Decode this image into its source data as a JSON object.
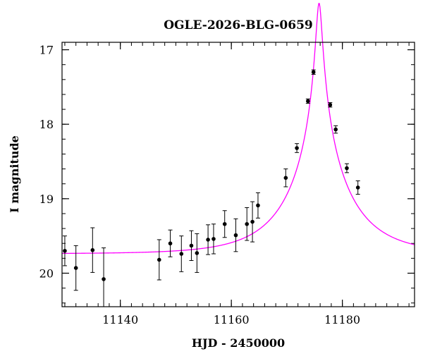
{
  "chart_data": {
    "type": "scatter",
    "title": "OGLE-2026-BLG-0659",
    "xlabel": "HJD - 2450000",
    "ylabel": "I magnitude",
    "xlim": [
      11129.5,
      11193
    ],
    "ylim": [
      20.45,
      16.9
    ],
    "y_inverted": true,
    "grid": false,
    "xticks": [
      11140,
      11160,
      11180
    ],
    "xtick_labels": [
      "11140",
      "11160",
      "11180"
    ],
    "yticks": [
      17,
      18,
      19,
      20
    ],
    "ytick_labels": [
      "17",
      "18",
      "19",
      "20"
    ],
    "x_minor_step": 2,
    "y_minor_step": 0.2,
    "series": [
      {
        "points": [
          {
            "x": 11130.0,
            "y": 19.7,
            "err": 0.2
          },
          {
            "x": 11132.0,
            "y": 19.93,
            "err": 0.3
          },
          {
            "x": 11135.0,
            "y": 19.69,
            "err": 0.3
          },
          {
            "x": 11137.0,
            "y": 20.08,
            "err": 0.42
          },
          {
            "x": 11147.0,
            "y": 19.82,
            "err": 0.27
          },
          {
            "x": 11149.0,
            "y": 19.6,
            "err": 0.18
          },
          {
            "x": 11151.0,
            "y": 19.74,
            "err": 0.24
          },
          {
            "x": 11152.8,
            "y": 19.63,
            "err": 0.2
          },
          {
            "x": 11153.8,
            "y": 19.73,
            "err": 0.26
          },
          {
            "x": 11155.8,
            "y": 19.55,
            "err": 0.2
          },
          {
            "x": 11156.8,
            "y": 19.54,
            "err": 0.2
          },
          {
            "x": 11158.8,
            "y": 19.34,
            "err": 0.18
          },
          {
            "x": 11160.8,
            "y": 19.49,
            "err": 0.22
          },
          {
            "x": 11162.8,
            "y": 19.34,
            "err": 0.22
          },
          {
            "x": 11163.8,
            "y": 19.31,
            "err": 0.27
          },
          {
            "x": 11164.8,
            "y": 19.09,
            "err": 0.17
          },
          {
            "x": 11169.8,
            "y": 18.72,
            "err": 0.12
          },
          {
            "x": 11171.8,
            "y": 18.32,
            "err": 0.06
          },
          {
            "x": 11173.8,
            "y": 17.69,
            "err": 0.03
          },
          {
            "x": 11174.8,
            "y": 17.3,
            "err": 0.03
          },
          {
            "x": 11177.8,
            "y": 17.74,
            "err": 0.03
          },
          {
            "x": 11178.8,
            "y": 18.07,
            "err": 0.05
          },
          {
            "x": 11180.8,
            "y": 18.59,
            "err": 0.06
          },
          {
            "x": 11182.8,
            "y": 18.85,
            "err": 0.09
          }
        ],
        "color": "#000000"
      },
      {
        "type": "line",
        "model": {
          "t0": 11175.8,
          "u0": 0.045,
          "tE": 11.0,
          "baseline_mag": 19.74
        },
        "color": "#ff00ff"
      }
    ]
  }
}
